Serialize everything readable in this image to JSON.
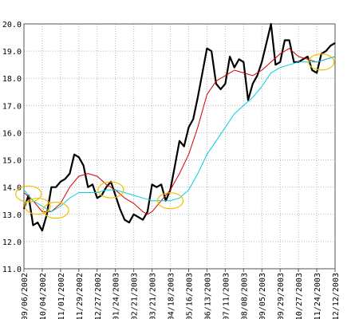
{
  "chart_data": {
    "type": "line",
    "title": "",
    "xlabel": "",
    "ylabel": "",
    "ylim": [
      11.0,
      20.0
    ],
    "y_ticks": [
      "11.0",
      "12.0",
      "13.0",
      "14.0",
      "15.0",
      "16.0",
      "17.0",
      "18.0",
      "19.0",
      "20.0"
    ],
    "x_tick_labels": [
      "09/06/2002",
      "10/04/2002",
      "11/01/2002",
      "11/29/2002",
      "12/27/2002",
      "01/24/2003",
      "02/21/2003",
      "03/21/2003",
      "04/18/2003",
      "05/16/2003",
      "06/13/2003",
      "07/11/2003",
      "08/08/2003",
      "09/05/2003",
      "09/29/2003",
      "10/27/2003",
      "11/24/2003",
      "12/12/2003"
    ],
    "grid": true,
    "series": [
      {
        "name": "",
        "color": "#000000",
        "points": [
          [
            0,
            13.2
          ],
          [
            1,
            13.7
          ],
          [
            2,
            12.6
          ],
          [
            3,
            12.7
          ],
          [
            4,
            12.4
          ],
          [
            5,
            13.0
          ],
          [
            6,
            14.0
          ],
          [
            7,
            14.0
          ],
          [
            8,
            14.2
          ],
          [
            9,
            14.3
          ],
          [
            10,
            14.5
          ],
          [
            11,
            15.2
          ],
          [
            12,
            15.1
          ],
          [
            13,
            14.8
          ],
          [
            14,
            14.0
          ],
          [
            15,
            14.1
          ],
          [
            16,
            13.6
          ],
          [
            17,
            13.7
          ],
          [
            18,
            14.0
          ],
          [
            19,
            14.2
          ],
          [
            20,
            13.7
          ],
          [
            21,
            13.2
          ],
          [
            22,
            12.8
          ],
          [
            23,
            12.7
          ],
          [
            24,
            13.0
          ],
          [
            25,
            12.9
          ],
          [
            26,
            12.8
          ],
          [
            27,
            13.1
          ],
          [
            28,
            14.1
          ],
          [
            29,
            14.0
          ],
          [
            30,
            14.1
          ],
          [
            31,
            13.5
          ],
          [
            32,
            13.9
          ],
          [
            33,
            14.8
          ],
          [
            34,
            15.7
          ],
          [
            35,
            15.5
          ],
          [
            36,
            16.2
          ],
          [
            37,
            16.5
          ],
          [
            38,
            17.3
          ],
          [
            39,
            18.2
          ],
          [
            40,
            19.1
          ],
          [
            41,
            19.0
          ],
          [
            42,
            17.8
          ],
          [
            43,
            17.6
          ],
          [
            44,
            17.8
          ],
          [
            45,
            18.8
          ],
          [
            46,
            18.4
          ],
          [
            47,
            18.7
          ],
          [
            48,
            18.6
          ],
          [
            49,
            17.2
          ],
          [
            50,
            17.8
          ],
          [
            51,
            18.1
          ],
          [
            52,
            18.6
          ],
          [
            53,
            19.3
          ],
          [
            54,
            20.0
          ],
          [
            55,
            18.5
          ],
          [
            56,
            18.6
          ],
          [
            57,
            19.4
          ],
          [
            58,
            19.4
          ],
          [
            59,
            18.6
          ],
          [
            60,
            18.6
          ],
          [
            61,
            18.7
          ],
          [
            62,
            18.8
          ],
          [
            63,
            18.3
          ],
          [
            64,
            18.2
          ],
          [
            65,
            18.9
          ],
          [
            66,
            19.0
          ],
          [
            67,
            19.2
          ],
          [
            68,
            19.3
          ]
        ]
      },
      {
        "name": "",
        "color": "#d00000",
        "points": [
          [
            0,
            13.8
          ],
          [
            2,
            13.5
          ],
          [
            4,
            13.1
          ],
          [
            6,
            13.1
          ],
          [
            8,
            13.4
          ],
          [
            10,
            14.0
          ],
          [
            12,
            14.4
          ],
          [
            14,
            14.5
          ],
          [
            16,
            14.4
          ],
          [
            18,
            14.1
          ],
          [
            20,
            13.9
          ],
          [
            22,
            13.6
          ],
          [
            24,
            13.4
          ],
          [
            26,
            13.1
          ],
          [
            27,
            13.0
          ],
          [
            28,
            13.1
          ],
          [
            30,
            13.5
          ],
          [
            32,
            13.9
          ],
          [
            34,
            14.5
          ],
          [
            36,
            15.2
          ],
          [
            38,
            16.2
          ],
          [
            40,
            17.4
          ],
          [
            42,
            17.9
          ],
          [
            44,
            18.1
          ],
          [
            46,
            18.3
          ],
          [
            48,
            18.2
          ],
          [
            50,
            18.1
          ],
          [
            52,
            18.3
          ],
          [
            54,
            18.6
          ],
          [
            56,
            18.9
          ],
          [
            58,
            19.1
          ],
          [
            60,
            18.8
          ],
          [
            62,
            18.7
          ],
          [
            64,
            18.6
          ],
          [
            66,
            18.7
          ],
          [
            68,
            18.8
          ]
        ]
      },
      {
        "name": "",
        "color": "#00d0d8",
        "points": [
          [
            0,
            13.9
          ],
          [
            2,
            13.5
          ],
          [
            4,
            13.3
          ],
          [
            6,
            13.1
          ],
          [
            8,
            13.3
          ],
          [
            10,
            13.6
          ],
          [
            12,
            13.8
          ],
          [
            14,
            13.8
          ],
          [
            16,
            13.8
          ],
          [
            18,
            13.9
          ],
          [
            20,
            13.9
          ],
          [
            22,
            13.8
          ],
          [
            24,
            13.7
          ],
          [
            26,
            13.6
          ],
          [
            28,
            13.5
          ],
          [
            30,
            13.5
          ],
          [
            32,
            13.5
          ],
          [
            34,
            13.6
          ],
          [
            36,
            13.9
          ],
          [
            38,
            14.5
          ],
          [
            40,
            15.2
          ],
          [
            42,
            15.7
          ],
          [
            44,
            16.2
          ],
          [
            46,
            16.7
          ],
          [
            48,
            17.0
          ],
          [
            50,
            17.3
          ],
          [
            52,
            17.7
          ],
          [
            54,
            18.2
          ],
          [
            56,
            18.4
          ],
          [
            58,
            18.5
          ],
          [
            60,
            18.6
          ],
          [
            62,
            18.6
          ],
          [
            64,
            18.6
          ],
          [
            66,
            18.7
          ],
          [
            68,
            18.8
          ]
        ]
      }
    ],
    "x_max_index": 68,
    "markers": [
      {
        "x": 1,
        "y": 13.75,
        "color": "#f0c000"
      },
      {
        "x": 3,
        "y": 13.3,
        "color": "#f0c000"
      },
      {
        "x": 7,
        "y": 13.15,
        "color": "#f0c000"
      },
      {
        "x": 19,
        "y": 13.9,
        "color": "#f0c000"
      },
      {
        "x": 32,
        "y": 13.5,
        "color": "#f0c000"
      },
      {
        "x": 65,
        "y": 18.6,
        "color": "#f0c000"
      }
    ]
  }
}
